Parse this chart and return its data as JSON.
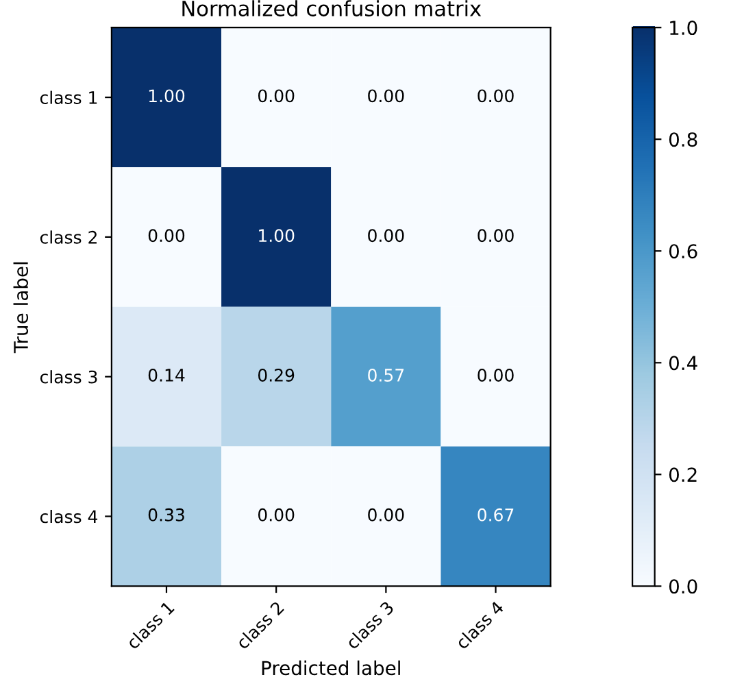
{
  "chart_data": {
    "type": "heatmap",
    "title": "Normalized confusion matrix",
    "xlabel": "Predicted label",
    "ylabel": "True label",
    "categories": [
      "class 1",
      "class 2",
      "class 3",
      "class 4"
    ],
    "y_categories": [
      "class 1",
      "class 2",
      "class 3",
      "class 4"
    ],
    "cells": [
      [
        1.0,
        0.0,
        0.0,
        0.0
      ],
      [
        0.0,
        1.0,
        0.0,
        0.0
      ],
      [
        0.14,
        0.29,
        0.57,
        0.0
      ],
      [
        0.33,
        0.0,
        0.0,
        0.67
      ]
    ],
    "cell_labels": [
      [
        "1.00",
        "0.00",
        "0.00",
        "0.00"
      ],
      [
        "0.00",
        "1.00",
        "0.00",
        "0.00"
      ],
      [
        "0.14",
        "0.29",
        "0.57",
        "0.00"
      ],
      [
        "0.33",
        "0.00",
        "0.00",
        "0.67"
      ]
    ],
    "clim": [
      0.0,
      1.0
    ],
    "cticks": [
      {
        "value": 0.0,
        "label": "0.0"
      },
      {
        "value": 0.2,
        "label": "0.2"
      },
      {
        "value": 0.4,
        "label": "0.4"
      },
      {
        "value": 0.6,
        "label": "0.6"
      },
      {
        "value": 0.8,
        "label": "0.8"
      },
      {
        "value": 1.0,
        "label": "1.0"
      }
    ],
    "grid": false
  }
}
